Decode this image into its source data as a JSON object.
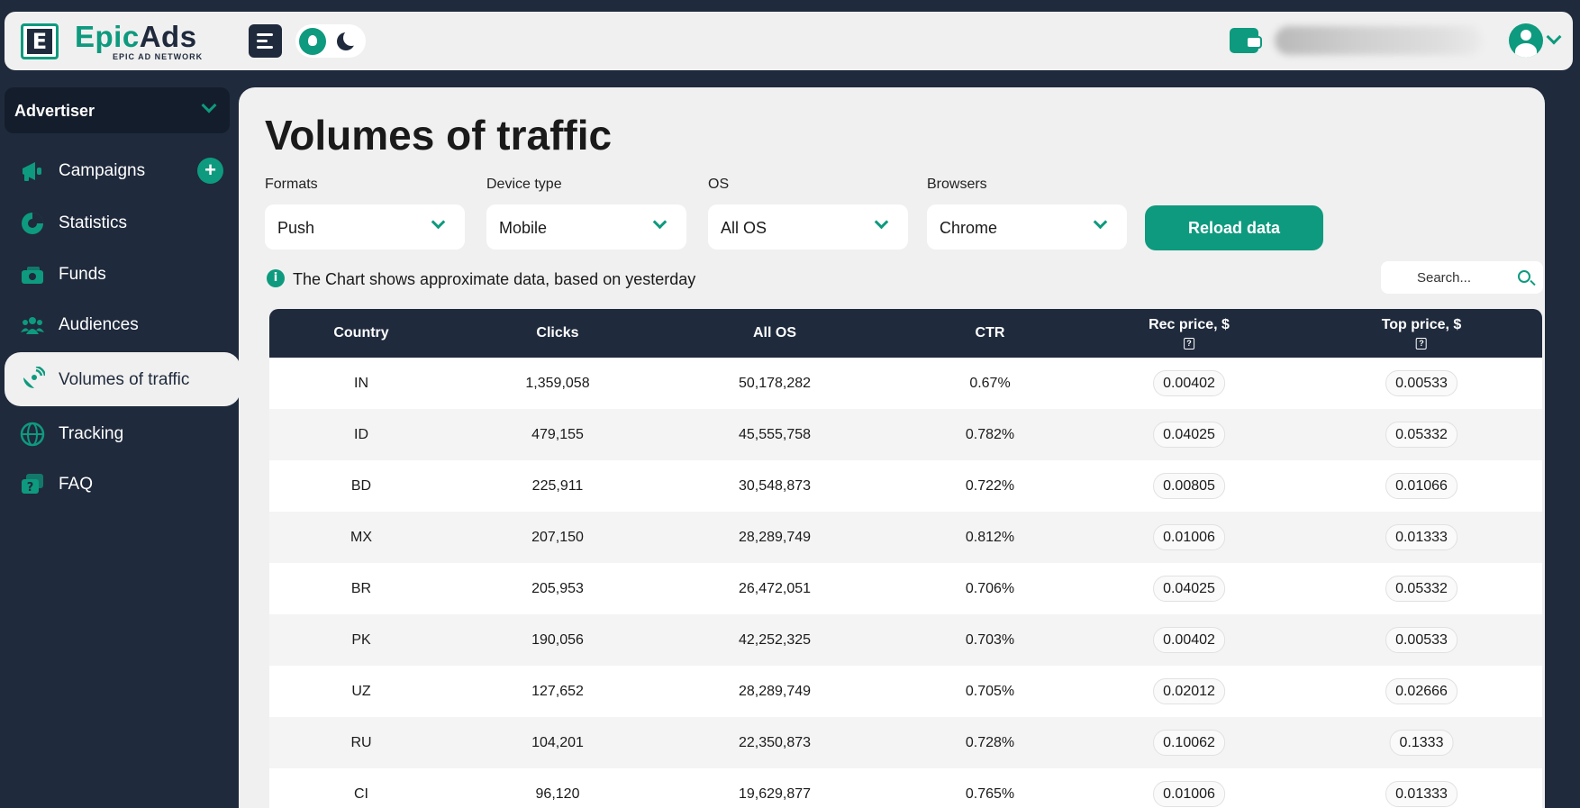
{
  "header": {
    "logo_letter": "E",
    "logo_epic": "Epic",
    "logo_ads": "Ads",
    "logo_sub": "EPIC AD NETWORK",
    "icons": {
      "menu": "menu-icon",
      "theme_light": "lightbulb-icon",
      "theme_dark": "moon-icon",
      "wallet": "wallet-icon",
      "user": "user-avatar-icon"
    }
  },
  "sidebar": {
    "role": "Advertiser",
    "items": [
      {
        "label": "Campaigns",
        "icon": "megaphone-icon"
      },
      {
        "label": "Statistics",
        "icon": "pie-chart-icon"
      },
      {
        "label": "Funds",
        "icon": "money-icon"
      },
      {
        "label": "Audiences",
        "icon": "users-icon"
      },
      {
        "label": "Volumes of traffic",
        "icon": "satellite-icon",
        "active": true
      },
      {
        "label": "Tracking",
        "icon": "globe-icon"
      },
      {
        "label": "FAQ",
        "icon": "faq-icon"
      }
    ]
  },
  "page": {
    "title": "Volumes of traffic",
    "filters": {
      "formats": {
        "label": "Formats",
        "value": "Push"
      },
      "device": {
        "label": "Device type",
        "value": "Mobile"
      },
      "os": {
        "label": "OS",
        "value": "All OS"
      },
      "browsers": {
        "label": "Browsers",
        "value": "Chrome"
      }
    },
    "reload_label": "Reload data",
    "info_text": "The Chart shows approximate data, based on yesterday",
    "search_placeholder": "Search..."
  },
  "table": {
    "headers": {
      "country": "Country",
      "clicks": "Clicks",
      "allos": "All OS",
      "ctr": "CTR",
      "rec": "Rec price, $",
      "top": "Top price, $"
    },
    "rows": [
      {
        "country": "IN",
        "clicks": "1,359,058",
        "allos": "50,178,282",
        "ctr": "0.67%",
        "rec": "0.00402",
        "top": "0.00533"
      },
      {
        "country": "ID",
        "clicks": "479,155",
        "allos": "45,555,758",
        "ctr": "0.782%",
        "rec": "0.04025",
        "top": "0.05332"
      },
      {
        "country": "BD",
        "clicks": "225,911",
        "allos": "30,548,873",
        "ctr": "0.722%",
        "rec": "0.00805",
        "top": "0.01066"
      },
      {
        "country": "MX",
        "clicks": "207,150",
        "allos": "28,289,749",
        "ctr": "0.812%",
        "rec": "0.01006",
        "top": "0.01333"
      },
      {
        "country": "BR",
        "clicks": "205,953",
        "allos": "26,472,051",
        "ctr": "0.706%",
        "rec": "0.04025",
        "top": "0.05332"
      },
      {
        "country": "PK",
        "clicks": "190,056",
        "allos": "42,252,325",
        "ctr": "0.703%",
        "rec": "0.00402",
        "top": "0.00533"
      },
      {
        "country": "UZ",
        "clicks": "127,652",
        "allos": "28,289,749",
        "ctr": "0.705%",
        "rec": "0.02012",
        "top": "0.02666"
      },
      {
        "country": "RU",
        "clicks": "104,201",
        "allos": "22,350,873",
        "ctr": "0.728%",
        "rec": "0.10062",
        "top": "0.1333"
      },
      {
        "country": "CI",
        "clicks": "96,120",
        "allos": "19,629,877",
        "ctr": "0.765%",
        "rec": "0.01006",
        "top": "0.01333"
      }
    ]
  },
  "colors": {
    "accent": "#0e9a7e",
    "navy": "#1f2a3c",
    "panel": "#f0f0f0"
  }
}
